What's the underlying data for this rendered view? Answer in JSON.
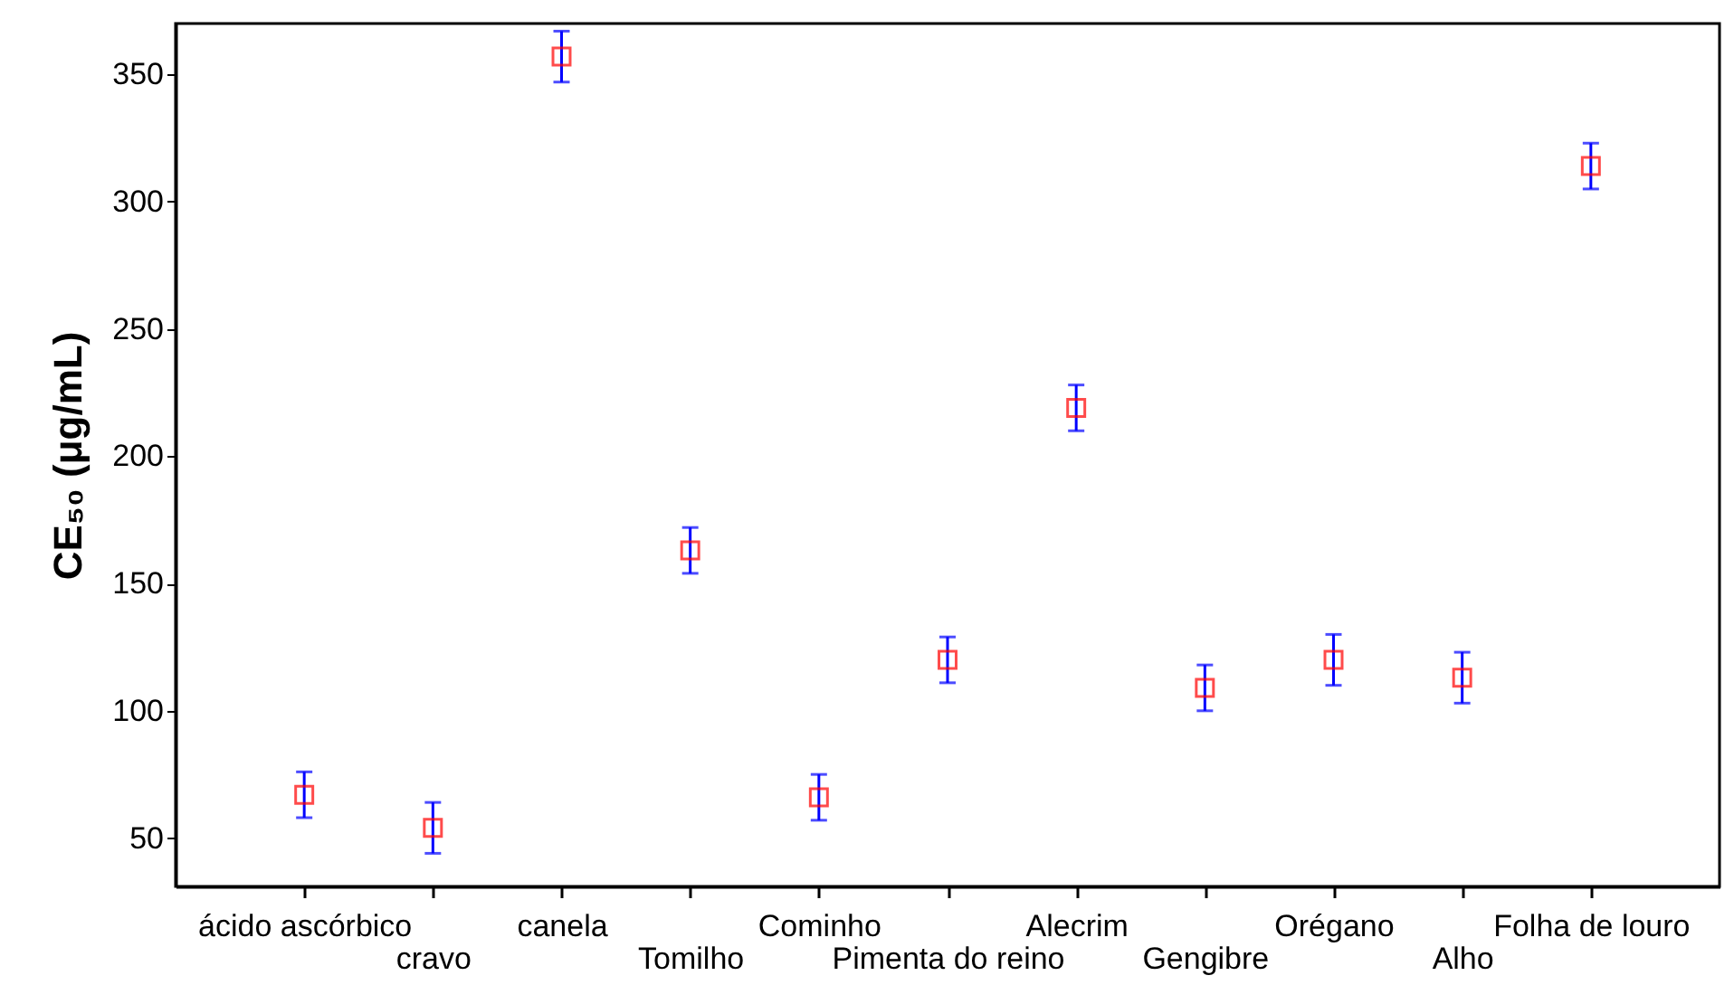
{
  "chart_data": {
    "type": "scatter",
    "ylabel": "CE₅₀ (μg/mL)",
    "categories": [
      "ácido ascórbico",
      "cravo",
      "canela",
      "Tomilho",
      "Cominho",
      "Pimenta do reino",
      "Alecrim",
      "Gengibre",
      "Orégano",
      "Alho",
      "Folha de louro"
    ],
    "series": [
      {
        "color": "#ff0000",
        "values": [
          67,
          54,
          357,
          163,
          66,
          120,
          219,
          109,
          120,
          113,
          314
        ],
        "errors": [
          9,
          10,
          10,
          9,
          9,
          9,
          9,
          9,
          10,
          10,
          9
        ]
      }
    ],
    "ylim": [
      31,
      370
    ],
    "yticks": [
      50,
      100,
      150,
      200,
      250,
      300,
      350
    ],
    "marker": "square",
    "grid": false
  }
}
